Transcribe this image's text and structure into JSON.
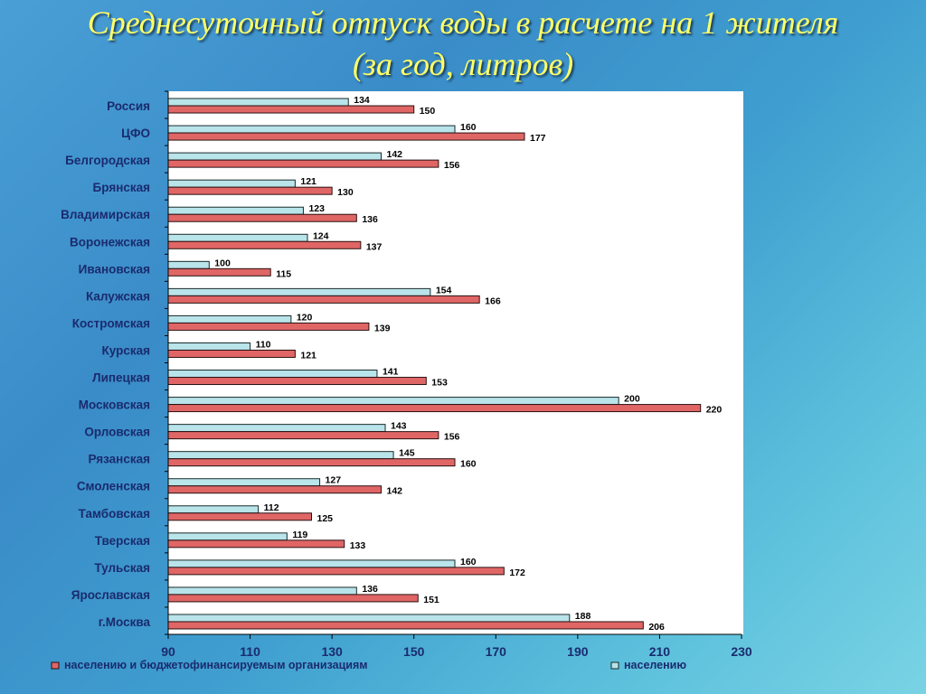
{
  "title": {
    "line1": "Среднесуточный отпуск воды в расчете на 1 жителя",
    "line2": "(за год, литров)"
  },
  "colors": {
    "series_population": "#b8e4ea",
    "series_total": "#e06666",
    "title": "#ffff66",
    "labels": "#1a2b6e"
  },
  "chart_data": {
    "type": "bar",
    "orientation": "horizontal",
    "xlim": [
      90,
      230
    ],
    "xticks": [
      90,
      110,
      130,
      150,
      170,
      190,
      210,
      230
    ],
    "grid": false,
    "legend_position": "bottom",
    "categories": [
      "Россия",
      "ЦФО",
      "Белгородская",
      "Брянская",
      "Владимирская",
      "Воронежская",
      "Ивановская",
      "Калужская",
      "Костромская",
      "Курская",
      "Липецкая",
      "Московская",
      "Орловская",
      "Рязанская",
      "Смоленская",
      "Тамбовская",
      "Тверская",
      "Тульская",
      "Ярославская",
      "г.Москва"
    ],
    "series": [
      {
        "name": "населению",
        "values": [
          134,
          160,
          142,
          121,
          123,
          124,
          100,
          154,
          120,
          110,
          141,
          200,
          143,
          145,
          127,
          112,
          119,
          160,
          136,
          188
        ]
      },
      {
        "name": "населению и бюджетофинансируемым организациям",
        "values": [
          150,
          177,
          156,
          130,
          136,
          137,
          115,
          166,
          139,
          121,
          153,
          220,
          156,
          160,
          142,
          125,
          133,
          172,
          151,
          206
        ]
      }
    ]
  }
}
